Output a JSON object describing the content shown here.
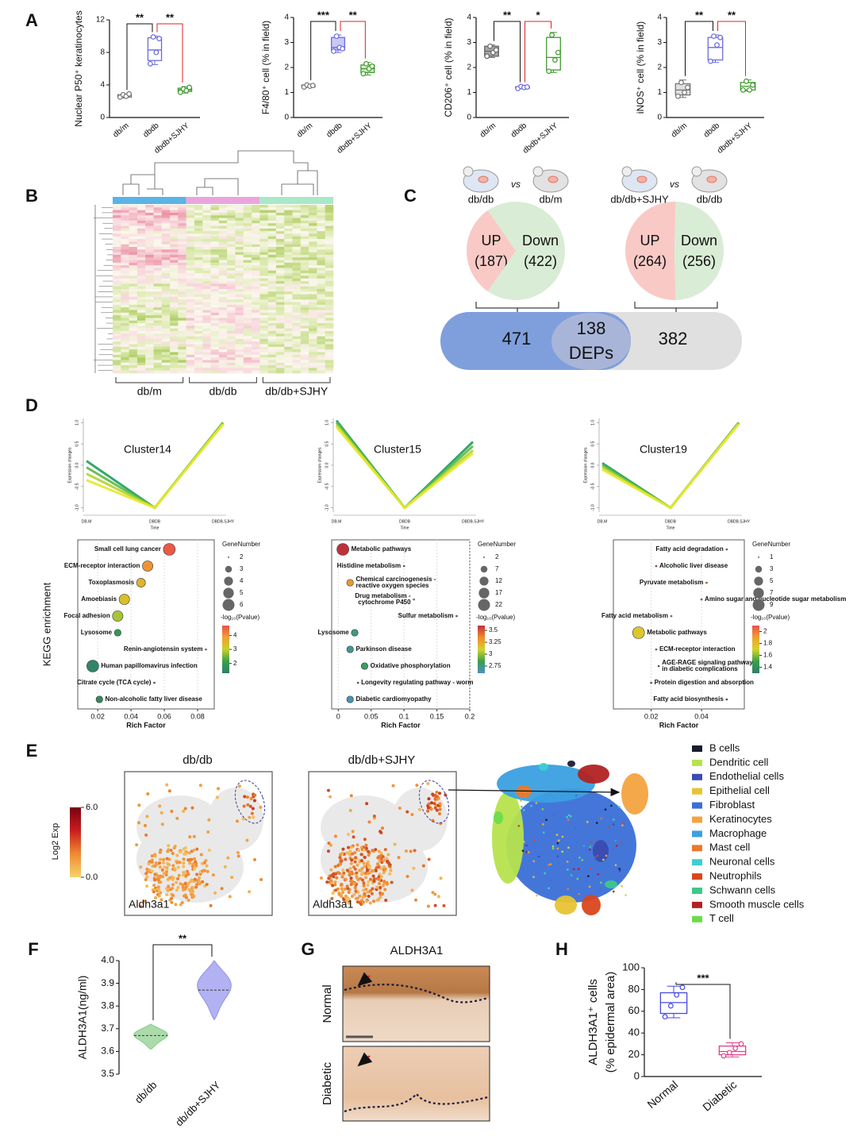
{
  "panel_labels": [
    "A",
    "B",
    "C",
    "D",
    "E",
    "F",
    "G",
    "H"
  ],
  "chart_data": [
    {
      "type": "box",
      "ylabel": "Nuclear P50⁺ keratinocytes",
      "categories": [
        "db/m",
        "dbdb",
        "dbdb+SJHY"
      ],
      "ylim": [
        0,
        12
      ],
      "yticks": [
        0,
        4,
        8,
        12
      ],
      "series": [
        {
          "color": "#777777",
          "fill": "#d9d9d9",
          "values": [
            2.4,
            2.5,
            2.7,
            2.8,
            2.9
          ],
          "points": [
            2.5,
            2.8,
            2.6,
            2.9
          ]
        },
        {
          "color": "#6b6be0",
          "fill": "#ffffff",
          "values": [
            6.5,
            7.0,
            8.3,
            9.8,
            10.0
          ],
          "points": [
            6.6,
            9.9,
            8.0,
            9.7
          ]
        },
        {
          "color": "#3f9a2e",
          "fill": "#d8f0c8",
          "values": [
            3.0,
            3.2,
            3.4,
            3.6,
            3.8
          ],
          "points": [
            3.1,
            3.5,
            3.3,
            3.7
          ]
        }
      ],
      "significance": [
        {
          "label": "**",
          "color": "#111111"
        },
        {
          "label": "**",
          "color": "#e02020"
        }
      ]
    },
    {
      "type": "box",
      "ylabel": "F4/80⁺ cell (% in field)",
      "categories": [
        "db/m",
        "dbdb",
        "dbdb+SJHY"
      ],
      "ylim": [
        0,
        4
      ],
      "yticks": [
        0,
        1,
        2,
        3,
        4
      ],
      "series": [
        {
          "color": "#777777",
          "fill": "#d9d9d9",
          "values": [
            1.2,
            1.22,
            1.26,
            1.3,
            1.33
          ],
          "points": [
            1.22,
            1.3,
            1.25,
            1.28
          ]
        },
        {
          "color": "#6b6be0",
          "fill": "#c8c8f8",
          "values": [
            2.6,
            2.7,
            2.8,
            3.2,
            3.3
          ],
          "points": [
            2.65,
            3.25,
            2.8,
            2.75
          ]
        },
        {
          "color": "#3f9a2e",
          "fill": "#d8f0c8",
          "values": [
            1.7,
            1.8,
            1.95,
            2.1,
            2.2
          ],
          "points": [
            1.75,
            2.15,
            1.95,
            2.05
          ]
        }
      ],
      "significance": [
        {
          "label": "***",
          "color": "#111111"
        },
        {
          "label": "**",
          "color": "#e02020"
        }
      ]
    },
    {
      "type": "box",
      "ylabel": "CD206⁺ cell (% in field)",
      "categories": [
        "db/m",
        "dbdb",
        "dbdb+SJHY"
      ],
      "ylim": [
        0,
        4
      ],
      "yticks": [
        0,
        1,
        2,
        3,
        4
      ],
      "series": [
        {
          "color": "#666666",
          "fill": "#a8a8a8",
          "values": [
            2.4,
            2.45,
            2.65,
            2.85,
            2.9
          ],
          "points": [
            2.45,
            2.85,
            2.6,
            2.7
          ]
        },
        {
          "color": "#6b6be0",
          "fill": "#c8c8f8",
          "values": [
            1.15,
            1.17,
            1.2,
            1.23,
            1.25
          ],
          "points": [
            1.16,
            1.24,
            1.2,
            1.22
          ]
        },
        {
          "color": "#3f9a2e",
          "fill": "#ffffff",
          "values": [
            1.8,
            1.9,
            2.4,
            3.2,
            3.4
          ],
          "points": [
            1.85,
            3.3,
            2.3,
            2.6
          ]
        }
      ],
      "significance": [
        {
          "label": "**",
          "color": "#111111"
        },
        {
          "label": "*",
          "color": "#e02020"
        }
      ]
    },
    {
      "type": "box",
      "ylabel": "iNOS⁺ cell (% in field)",
      "categories": [
        "db/m",
        "dbdb",
        "dbdb+SJHY"
      ],
      "ylim": [
        0,
        4
      ],
      "yticks": [
        0,
        1,
        2,
        3,
        4
      ],
      "series": [
        {
          "color": "#777777",
          "fill": "#e0e0e0",
          "values": [
            0.8,
            0.9,
            1.1,
            1.35,
            1.5
          ],
          "points": [
            0.85,
            1.4,
            1.0,
            1.2
          ]
        },
        {
          "color": "#6b6be0",
          "fill": "#ffffff",
          "values": [
            2.2,
            2.3,
            2.8,
            3.2,
            3.3
          ],
          "points": [
            2.25,
            3.25,
            2.9,
            3.2
          ]
        },
        {
          "color": "#3f9a2e",
          "fill": "#ffffff",
          "values": [
            1.05,
            1.1,
            1.25,
            1.4,
            1.5
          ],
          "points": [
            1.1,
            1.45,
            1.1,
            1.3
          ]
        }
      ],
      "significance": [
        {
          "label": "**",
          "color": "#111111"
        },
        {
          "label": "**",
          "color": "#e02020"
        }
      ]
    },
    {
      "type": "pie",
      "comparison": [
        "db/db",
        "vs",
        "db/m"
      ],
      "labels": [
        "UP",
        "Down"
      ],
      "values": [
        187,
        422
      ],
      "value_labels": [
        "(187)",
        "(422)"
      ],
      "colors": [
        "#f9c9c6",
        "#d9ecd5"
      ]
    },
    {
      "type": "pie",
      "comparison": [
        "db/db+SJHY",
        "vs",
        "db/db"
      ],
      "labels": [
        "UP",
        "Down"
      ],
      "values": [
        264,
        256
      ],
      "value_labels": [
        "(264)",
        "(256)"
      ],
      "colors": [
        "#f9c9c6",
        "#d9ecd5"
      ]
    },
    {
      "type": "line",
      "title": "Cluster14",
      "xlabel": "Time",
      "ylabel": "Expression changes",
      "categories": [
        "DB.M",
        "DBDB",
        "DBDB.SJHY"
      ],
      "ylim": [
        -1.1,
        1.1
      ],
      "yticks": [
        {
          "value": 1,
          "label": "1.0"
        },
        0.5,
        {
          "value": 0,
          "label": "0.0"
        },
        -0.5,
        {
          "value": -1,
          "label": "-1.0"
        }
      ],
      "series": [
        {
          "color": "#1f9e5a",
          "values": [
            0.1,
            -1,
            1
          ]
        },
        {
          "color": "#5cb845",
          "values": [
            -0.05,
            -1,
            1
          ]
        },
        {
          "color": "#b0d42c",
          "values": [
            -0.2,
            -1,
            0.98
          ]
        },
        {
          "color": "#e6e82a",
          "values": [
            -0.35,
            -1,
            0.96
          ]
        }
      ]
    },
    {
      "type": "line",
      "title": "Cluster15",
      "xlabel": "Time",
      "ylabel": "Expression changes",
      "categories": [
        "DB.M",
        "DBDB",
        "DBDB.SJHY"
      ],
      "ylim": [
        -1.1,
        1.1
      ],
      "yticks": [
        {
          "value": 1,
          "label": "1.0"
        },
        0.5,
        {
          "value": 0,
          "label": "0.0"
        },
        -0.5,
        {
          "value": -1,
          "label": "-1.0"
        }
      ],
      "series": [
        {
          "color": "#1f9e5a",
          "values": [
            1.05,
            -1,
            0.55
          ]
        },
        {
          "color": "#5cb845",
          "values": [
            1.0,
            -1,
            0.45
          ]
        },
        {
          "color": "#b0d42c",
          "values": [
            0.95,
            -1,
            0.35
          ]
        },
        {
          "color": "#e6e82a",
          "values": [
            0.9,
            -1,
            0.28
          ]
        }
      ]
    },
    {
      "type": "line",
      "title": "Cluster19",
      "xlabel": "Time",
      "ylabel": "Expression changes",
      "categories": [
        "DB.M",
        "DBDB",
        "DBDB.SJHY"
      ],
      "ylim": [
        -1.1,
        1.1
      ],
      "yticks": [
        {
          "value": 1,
          "label": "1.0"
        },
        0.5,
        {
          "value": 0,
          "label": "0.0"
        },
        -0.5,
        {
          "value": -1,
          "label": "-1.0"
        }
      ],
      "series": [
        {
          "color": "#1f9e5a",
          "values": [
            0.05,
            -1,
            1
          ]
        },
        {
          "color": "#5cb845",
          "values": [
            0,
            -1,
            1
          ]
        },
        {
          "color": "#b0d42c",
          "values": [
            -0.05,
            -1,
            0.98
          ]
        },
        {
          "color": "#e6e82a",
          "values": [
            -0.1,
            -1,
            0.97
          ]
        }
      ]
    },
    {
      "type": "bubble",
      "ylabel": "KEGG enrichment",
      "xlabel": "Rich Factor",
      "xlim": [
        0.008,
        0.09
      ],
      "xticks": [
        0.02,
        0.04,
        0.06,
        0.08
      ],
      "terms": [
        [
          "Small cell lung cancer"
        ],
        [
          "ECM-receptor interaction"
        ],
        [
          "Toxoplasmosis"
        ],
        [
          "Amoebiasis"
        ],
        [
          "Focal adhesion"
        ],
        [
          "Lysosome"
        ],
        [
          "Renin-angiotensin system"
        ],
        [
          "Human papillomavirus infection"
        ],
        [
          "Citrate cycle (TCA cycle)"
        ],
        [
          "Non-alcoholic fatty liver disease"
        ]
      ],
      "x": [
        0.063,
        0.05,
        0.046,
        0.036,
        0.032,
        0.032,
        0.085,
        0.017,
        0.054,
        0.021
      ],
      "sizes": [
        6,
        5,
        4,
        5,
        5,
        3,
        2,
        6,
        2,
        3
      ],
      "pvalues": [
        4.6,
        4.0,
        3.5,
        3.3,
        2.8,
        1.9,
        3.0,
        1.5,
        2.0,
        1.6
      ],
      "size_legend": {
        "title": "GeneNumber",
        "values": [
          2,
          3,
          4,
          5,
          6
        ]
      },
      "color_legend": {
        "title": "-log₁₀(Pvalue)",
        "ticks": [
          2,
          3,
          4
        ],
        "clim": [
          1.3,
          4.7
        ],
        "colors": [
          "#2e7d6e",
          "#3aa04a",
          "#c8d12a",
          "#f0a030",
          "#e8504a"
        ]
      }
    },
    {
      "type": "bubble",
      "xlabel": "Rich Factor",
      "xlim": [
        -0.01,
        0.2
      ],
      "xticks": [
        0,
        0.05,
        0.1,
        0.15,
        0.2
      ],
      "terms": [
        [
          "Metabolic pathways"
        ],
        [
          "Histidine metabolism"
        ],
        [
          "Chemical carcinogenesis -",
          "reactive oxygen species"
        ],
        [
          "Drug metabolism -",
          "cytochrome P450"
        ],
        [
          "Sulfur metabolism"
        ],
        [
          "Lysosome"
        ],
        [
          "Parkinson disease"
        ],
        [
          "Oxidative phosphorylation"
        ],
        [
          "Longevity regulating pathway - worm"
        ],
        [
          "Diabetic cardiomyopathy"
        ]
      ],
      "x": [
        0.007,
        0.1,
        0.018,
        0.115,
        0.18,
        0.025,
        0.018,
        0.04,
        0.03,
        0.018
      ],
      "sizes": [
        22,
        2,
        7,
        2,
        2,
        7,
        7,
        7,
        2,
        7
      ],
      "pvalues": [
        3.6,
        2.9,
        3.3,
        3.1,
        2.8,
        2.75,
        2.7,
        2.8,
        2.9,
        2.65
      ],
      "size_legend": {
        "title": "GeneNumber",
        "values": [
          2,
          7,
          12,
          17,
          22
        ]
      },
      "color_legend": {
        "title": "-log₁₀(Pvalue)",
        "ticks": [
          2.75,
          3,
          3.25,
          3.5
        ],
        "clim": [
          2.6,
          3.6
        ],
        "colors": [
          "#4a90c8",
          "#3aa04a",
          "#d4d42a",
          "#f08a30",
          "#c0303a"
        ]
      }
    },
    {
      "type": "bubble",
      "xlabel": "Rich Factor",
      "xlim": [
        0.005,
        0.057
      ],
      "xticks": [
        0.02,
        0.04
      ],
      "terms": [
        [
          "Fatty acid degradation"
        ],
        [
          "Alcoholic liver disease"
        ],
        [
          "Pyruvate metabolism"
        ],
        [
          "Amino sugar and nucleotide sugar metabolism"
        ],
        [
          "Fatty acid metabolism"
        ],
        [
          "Metabolic pathways"
        ],
        [
          "ECM-receptor interaction"
        ],
        [
          "AGE-RAGE signaling pathway",
          "in diabetic complications"
        ],
        [
          "Protein digestion and absorption"
        ],
        [
          "Fatty acid biosynthesis"
        ]
      ],
      "x": [
        0.05,
        0.022,
        0.042,
        0.04,
        0.028,
        0.015,
        0.022,
        0.023,
        0.02,
        0.05
      ],
      "sizes": [
        1,
        1,
        1,
        1,
        1,
        9,
        1,
        1,
        1,
        1
      ],
      "pvalues": [
        1.95,
        2.05,
        1.9,
        1.85,
        1.7,
        1.75,
        1.6,
        1.5,
        1.45,
        1.35
      ],
      "size_legend": {
        "title": "GeneNumber",
        "values": [
          1,
          3,
          5,
          7,
          9
        ]
      },
      "color_legend": {
        "title": "-log₁₀(Pvalue)",
        "ticks": [
          1.4,
          1.6,
          1.8,
          2
        ],
        "clim": [
          1.3,
          2.1
        ],
        "colors": [
          "#2e7d6e",
          "#3aa04a",
          "#d4d42a",
          "#f0a030",
          "#e8504a"
        ]
      }
    },
    {
      "type": "violin",
      "ylabel": "ALDH3A1(ng/ml)",
      "categories": [
        "db/db",
        "db/db+SJHY"
      ],
      "ylim": [
        3.5,
        4.0
      ],
      "yticks": [
        3.5,
        3.6,
        3.7,
        3.8,
        3.9,
        {
          "value": 4,
          "label": "4.0"
        }
      ],
      "series": [
        {
          "color": "#8fcf8f",
          "values": [
            3.61,
            3.67,
            3.72
          ]
        },
        {
          "color": "#9898ee",
          "values": [
            3.74,
            3.87,
            4.0
          ]
        }
      ],
      "significance": [
        {
          "label": "**",
          "color": "#111111"
        }
      ]
    },
    {
      "type": "box",
      "ylabel": [
        "ALDH3A1⁺ cells",
        "(% epidermal area)"
      ],
      "categories": [
        "Normal",
        "Diabetic"
      ],
      "ylim": [
        0,
        100
      ],
      "yticks": [
        0,
        20,
        40,
        60,
        80,
        100
      ],
      "series": [
        {
          "color": "#4a4ae0",
          "fill": "#ffffff",
          "values": [
            54,
            58,
            68,
            77,
            83
          ],
          "points": [
            55,
            65,
            75,
            82
          ]
        },
        {
          "color": "#e0408a",
          "fill": "#ffffff",
          "values": [
            18,
            20,
            23,
            28,
            31
          ],
          "points": [
            19,
            22,
            26,
            30
          ]
        }
      ],
      "significance": [
        {
          "label": "***",
          "color": "#111111"
        }
      ]
    }
  ],
  "heatmap": {
    "groups": [
      {
        "label": "db/m",
        "color": "#5ab4e5"
      },
      {
        "label": "db/db",
        "color": "#eaa6dc"
      },
      {
        "label": "db/db+SJHY",
        "color": "#a9e8c8"
      }
    ]
  },
  "venn": {
    "left": 471,
    "overlap": 138,
    "overlap_label": "DEPs",
    "right": 382
  },
  "tsne": {
    "panels": [
      {
        "title": "db/db",
        "gene": "Aldh3a1"
      },
      {
        "title": "db/db+SJHY",
        "gene": "Aldh3a1"
      }
    ],
    "colorbar": {
      "label": "Log2 Exp",
      "ticks": [
        {
          "value": 6,
          "label": "6.0"
        },
        {
          "value": 0,
          "label": "0.0"
        }
      ],
      "clim": [
        0,
        6
      ]
    },
    "cell_types": [
      {
        "name": "B cells",
        "color": "#1c1c30"
      },
      {
        "name": "Dendritic cell",
        "color": "#b6e34c"
      },
      {
        "name": "Endothelial cells",
        "color": "#3b4bb0"
      },
      {
        "name": "Epithelial cell",
        "color": "#e8c334"
      },
      {
        "name": "Fibroblast",
        "color": "#3a6fd8"
      },
      {
        "name": "Keratinocytes",
        "color": "#f4a340"
      },
      {
        "name": "Macrophage",
        "color": "#3aa0e0"
      },
      {
        "name": "Mast cell",
        "color": "#e87a2a"
      },
      {
        "name": "Neuronal cells",
        "color": "#3ccfcf"
      },
      {
        "name": "Neutrophils",
        "color": "#d9461e"
      },
      {
        "name": "Schwann cells",
        "color": "#3ec88a"
      },
      {
        "name": "Smooth muscle cells",
        "color": "#b22222"
      },
      {
        "name": "T cell",
        "color": "#6bdc4a"
      }
    ]
  },
  "ihc": {
    "title": "ALDH3A1",
    "rows": [
      "Normal",
      "Diabetic"
    ]
  }
}
